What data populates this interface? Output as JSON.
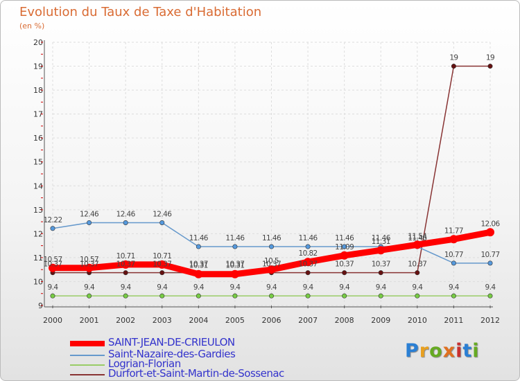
{
  "chart_data": {
    "type": "line",
    "title": "Evolution du Taux de Taxe d'Habitation",
    "subtitle": "(en %)",
    "x": [
      "2000",
      "2001",
      "2002",
      "2003",
      "2004",
      "2005",
      "2006",
      "2007",
      "2008",
      "2009",
      "2010",
      "2011",
      "2012"
    ],
    "ylim": [
      9,
      20
    ],
    "yticks": [
      "9",
      "10",
      "11",
      "12",
      "13",
      "14",
      "15",
      "16",
      "17",
      "18",
      "19",
      "20"
    ],
    "grid": true,
    "series": [
      {
        "name": "SAINT-JEAN-DE-CRIEULON",
        "color": "#ff0000",
        "values": [
          10.57,
          10.57,
          10.71,
          10.71,
          10.31,
          10.31,
          10.5,
          10.82,
          11.09,
          11.31,
          11.54,
          11.77,
          12.06
        ],
        "labels": [
          "10.57",
          "10.57",
          "10.71",
          "10.71",
          "10.31",
          "10.31",
          "10.5",
          "10.82",
          "11.09",
          "11.31",
          "11.54",
          "11.77",
          "12.06"
        ]
      },
      {
        "name": "Saint-Nazaire-des-Gardies",
        "color": "#6699cc",
        "values": [
          12.22,
          12.46,
          12.46,
          12.46,
          11.46,
          11.46,
          11.46,
          11.46,
          11.46,
          11.46,
          11.46,
          10.77,
          10.77
        ],
        "labels": [
          "12.22",
          "12.46",
          "12.46",
          "12.46",
          "11.46",
          "11.46",
          "11.46",
          "11.46",
          "11.46",
          "11.46",
          "11.46",
          "10.77",
          "10.77"
        ]
      },
      {
        "name": "Logrian-Florian",
        "color": "#99cc66",
        "values": [
          9.4,
          9.4,
          9.4,
          9.4,
          9.4,
          9.4,
          9.4,
          9.4,
          9.4,
          9.4,
          9.4,
          9.4,
          9.4
        ],
        "labels": [
          "9.4",
          "9.4",
          "9.4",
          "9.4",
          "9.4",
          "9.4",
          "9.4",
          "9.4",
          "9.4",
          "9.4",
          "9.4",
          "9.4",
          "9.4"
        ]
      },
      {
        "name": "Durfort-et-Saint-Martin-de-Sossenac",
        "color": "#883333",
        "values": [
          10.37,
          10.37,
          10.37,
          10.37,
          10.37,
          10.37,
          10.37,
          10.37,
          10.37,
          10.37,
          10.37,
          19,
          19
        ],
        "labels": [
          "10.37",
          "10.37",
          "10.37",
          "10.37",
          "10.37",
          "10.37",
          "10.37",
          "10.37",
          "10.37",
          "10.37",
          "10.37",
          "19",
          "19"
        ]
      }
    ]
  },
  "logo": {
    "text": "Proxiti"
  }
}
